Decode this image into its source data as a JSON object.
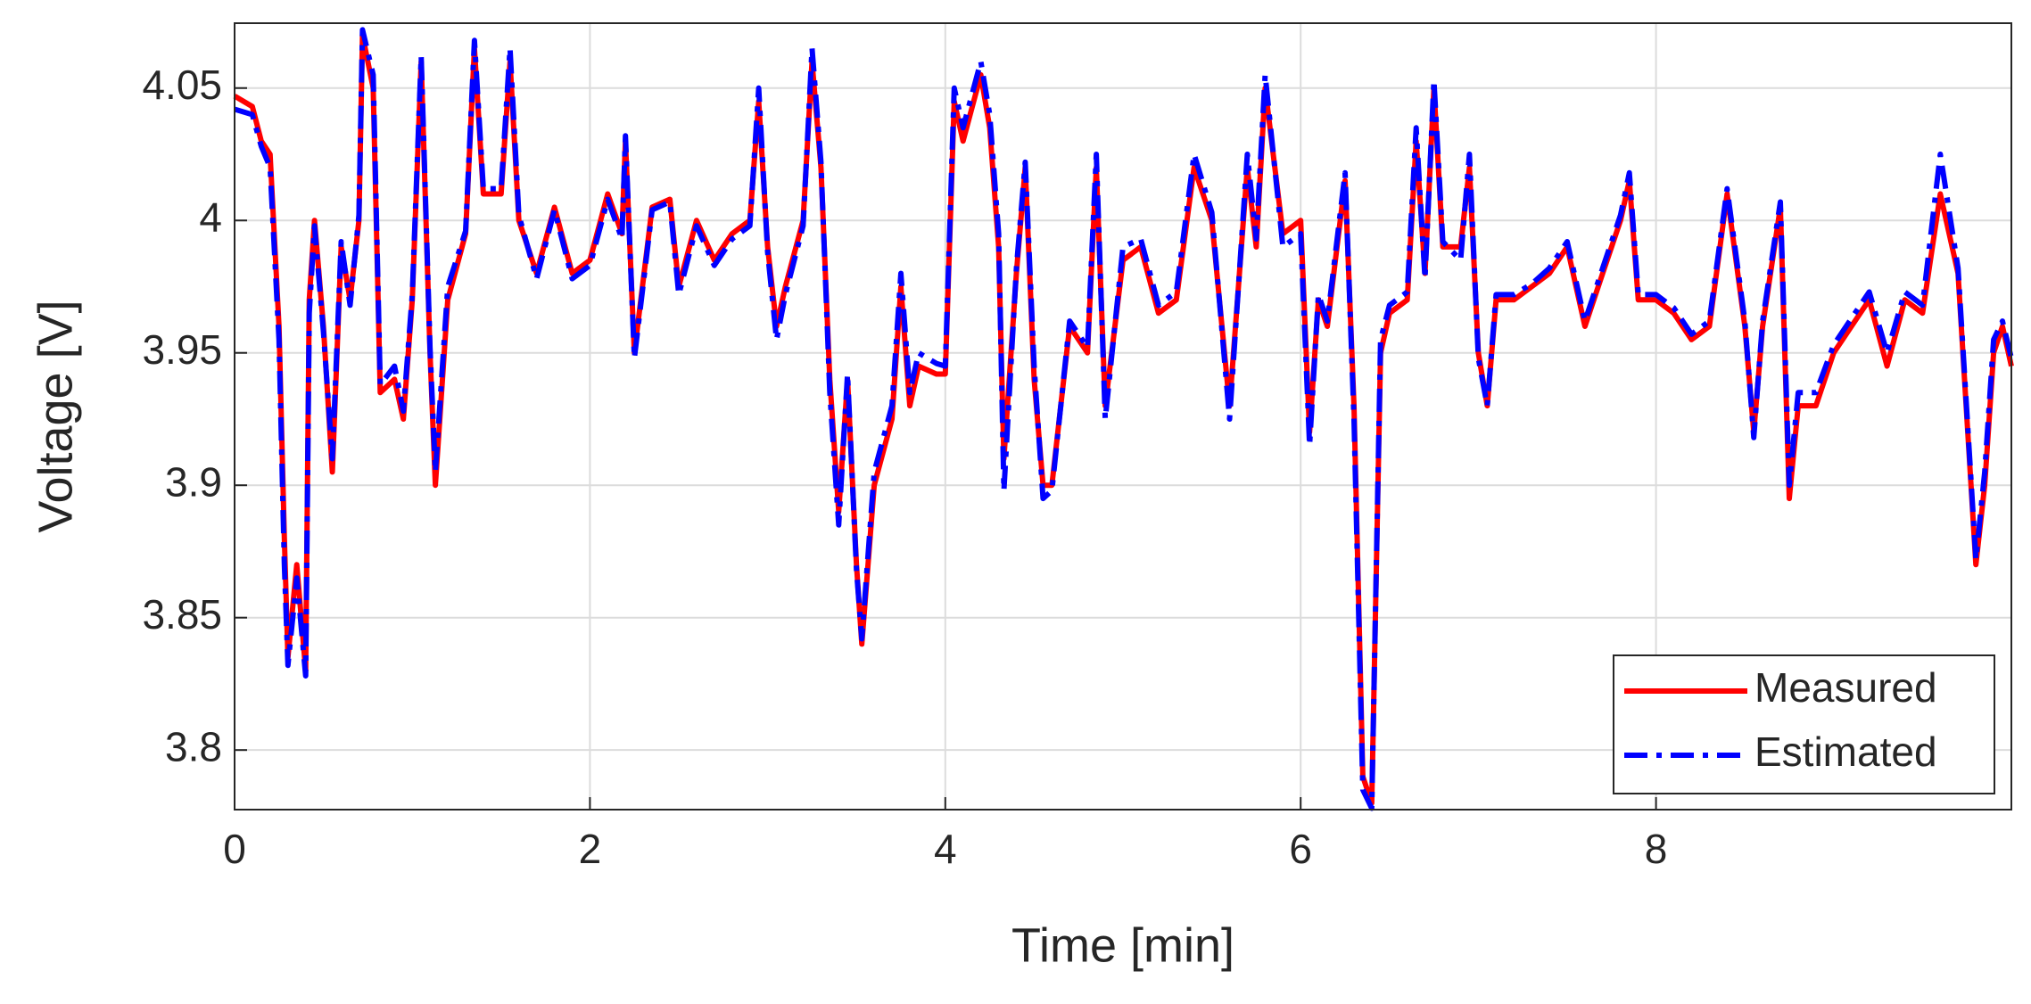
{
  "chart_data": {
    "type": "line",
    "xlabel": "Time [min]",
    "ylabel": "Voltage [V]",
    "x": [
      0,
      0.1,
      0.15,
      0.2,
      0.25,
      0.28,
      0.3,
      0.35,
      0.4,
      0.42,
      0.45,
      0.5,
      0.55,
      0.6,
      0.65,
      0.7,
      0.72,
      0.78,
      0.82,
      0.9,
      0.95,
      1.0,
      1.05,
      1.1,
      1.13,
      1.2,
      1.3,
      1.35,
      1.4,
      1.5,
      1.55,
      1.6,
      1.7,
      1.8,
      1.9,
      2.0,
      2.1,
      2.18,
      2.2,
      2.25,
      2.35,
      2.45,
      2.5,
      2.6,
      2.7,
      2.8,
      2.9,
      2.95,
      3.0,
      3.05,
      3.1,
      3.2,
      3.25,
      3.3,
      3.35,
      3.4,
      3.45,
      3.5,
      3.53,
      3.6,
      3.7,
      3.75,
      3.8,
      3.85,
      3.95,
      4.0,
      4.05,
      4.1,
      4.2,
      4.25,
      4.3,
      4.33,
      4.4,
      4.45,
      4.5,
      4.55,
      4.6,
      4.7,
      4.8,
      4.85,
      4.9,
      5.0,
      5.1,
      5.2,
      5.3,
      5.4,
      5.5,
      5.6,
      5.7,
      5.75,
      5.8,
      5.9,
      6.0,
      6.05,
      6.1,
      6.15,
      6.25,
      6.3,
      6.35,
      6.4,
      6.45,
      6.5,
      6.6,
      6.65,
      6.7,
      6.75,
      6.8,
      6.9,
      6.95,
      7.0,
      7.05,
      7.1,
      7.2,
      7.3,
      7.4,
      7.5,
      7.6,
      7.7,
      7.8,
      7.85,
      7.9,
      8.0,
      8.1,
      8.2,
      8.3,
      8.4,
      8.5,
      8.55,
      8.6,
      8.7,
      8.75,
      8.8,
      8.9,
      9.0,
      9.1,
      9.2,
      9.3,
      9.4,
      9.5,
      9.6,
      9.7,
      9.8,
      9.85,
      9.9,
      9.95,
      10.0
    ],
    "series": [
      {
        "name": "Measured",
        "color": "#ff0000",
        "dash": "solid",
        "values": [
          4.047,
          4.043,
          4.03,
          4.025,
          3.96,
          3.88,
          3.835,
          3.87,
          3.83,
          3.97,
          4.0,
          3.96,
          3.905,
          3.99,
          3.97,
          4.0,
          4.07,
          4.05,
          3.935,
          3.94,
          3.925,
          3.97,
          4.06,
          3.95,
          3.9,
          3.97,
          3.995,
          4.065,
          4.01,
          4.01,
          4.06,
          4.0,
          3.98,
          4.005,
          3.98,
          3.985,
          4.01,
          3.995,
          4.03,
          3.95,
          4.005,
          4.008,
          3.975,
          4.0,
          3.985,
          3.995,
          4.0,
          4.045,
          3.99,
          3.96,
          3.975,
          4.0,
          4.06,
          4.02,
          3.94,
          3.89,
          3.94,
          3.87,
          3.84,
          3.9,
          3.925,
          3.975,
          3.93,
          3.945,
          3.942,
          3.942,
          4.045,
          4.03,
          4.055,
          4.035,
          3.99,
          3.91,
          3.98,
          4.02,
          3.94,
          3.9,
          3.9,
          3.96,
          3.95,
          4.02,
          3.93,
          3.985,
          3.99,
          3.965,
          3.97,
          4.02,
          4.0,
          3.93,
          4.02,
          3.99,
          4.05,
          3.995,
          4.0,
          3.92,
          3.97,
          3.96,
          4.015,
          3.93,
          3.79,
          3.78,
          3.95,
          3.965,
          3.97,
          4.03,
          3.98,
          4.05,
          3.99,
          3.99,
          4.02,
          3.95,
          3.93,
          3.97,
          3.97,
          3.975,
          3.98,
          3.99,
          3.96,
          3.98,
          4.0,
          4.015,
          3.97,
          3.97,
          3.965,
          3.955,
          3.96,
          4.01,
          3.96,
          3.92,
          3.96,
          4.005,
          3.895,
          3.93,
          3.93,
          3.95,
          3.96,
          3.97,
          3.945,
          3.97,
          3.965,
          4.01,
          3.98,
          3.87,
          3.9,
          3.95,
          3.96,
          3.945
        ]
      },
      {
        "name": "Estimated",
        "color": "#0000ff",
        "dash": "dashdot",
        "values": [
          4.042,
          4.04,
          4.028,
          4.02,
          3.955,
          3.87,
          3.832,
          3.865,
          3.828,
          3.965,
          3.998,
          3.958,
          3.91,
          3.992,
          3.968,
          4.002,
          4.072,
          4.055,
          3.938,
          3.945,
          3.928,
          3.972,
          4.062,
          3.952,
          3.905,
          3.975,
          3.996,
          4.068,
          4.012,
          4.012,
          4.065,
          4.002,
          3.978,
          4.004,
          3.978,
          3.983,
          4.008,
          3.993,
          4.032,
          3.948,
          4.004,
          4.007,
          3.972,
          3.998,
          3.983,
          3.993,
          3.998,
          4.05,
          3.988,
          3.955,
          3.972,
          3.998,
          4.065,
          4.022,
          3.935,
          3.885,
          3.942,
          3.868,
          3.842,
          3.905,
          3.93,
          3.98,
          3.935,
          3.95,
          3.946,
          3.945,
          4.05,
          4.035,
          4.06,
          4.04,
          3.995,
          3.898,
          3.982,
          4.022,
          3.945,
          3.895,
          3.898,
          3.962,
          3.952,
          4.025,
          3.925,
          3.99,
          3.993,
          3.968,
          3.973,
          4.025,
          4.003,
          3.925,
          4.025,
          3.993,
          4.055,
          3.99,
          3.995,
          3.915,
          3.972,
          3.962,
          4.018,
          3.925,
          3.785,
          3.778,
          3.955,
          3.968,
          3.973,
          4.035,
          3.978,
          4.053,
          3.992,
          3.985,
          4.025,
          3.948,
          3.93,
          3.972,
          3.972,
          3.976,
          3.982,
          3.992,
          3.962,
          3.982,
          4.002,
          4.018,
          3.972,
          3.972,
          3.967,
          3.957,
          3.962,
          4.012,
          3.962,
          3.918,
          3.962,
          4.007,
          3.9,
          3.935,
          3.935,
          3.953,
          3.963,
          3.973,
          3.95,
          3.973,
          3.968,
          4.025,
          3.982,
          3.872,
          3.905,
          3.955,
          3.962,
          3.948
        ]
      }
    ],
    "xlim": [
      0,
      10.0
    ],
    "ylim": [
      3.7775,
      4.0745
    ],
    "xticks": [
      0,
      2,
      4,
      6,
      8
    ],
    "yticks": [
      3.8,
      3.85,
      3.9,
      3.95,
      4,
      4.05
    ],
    "grid": true,
    "legend": "lower right"
  }
}
